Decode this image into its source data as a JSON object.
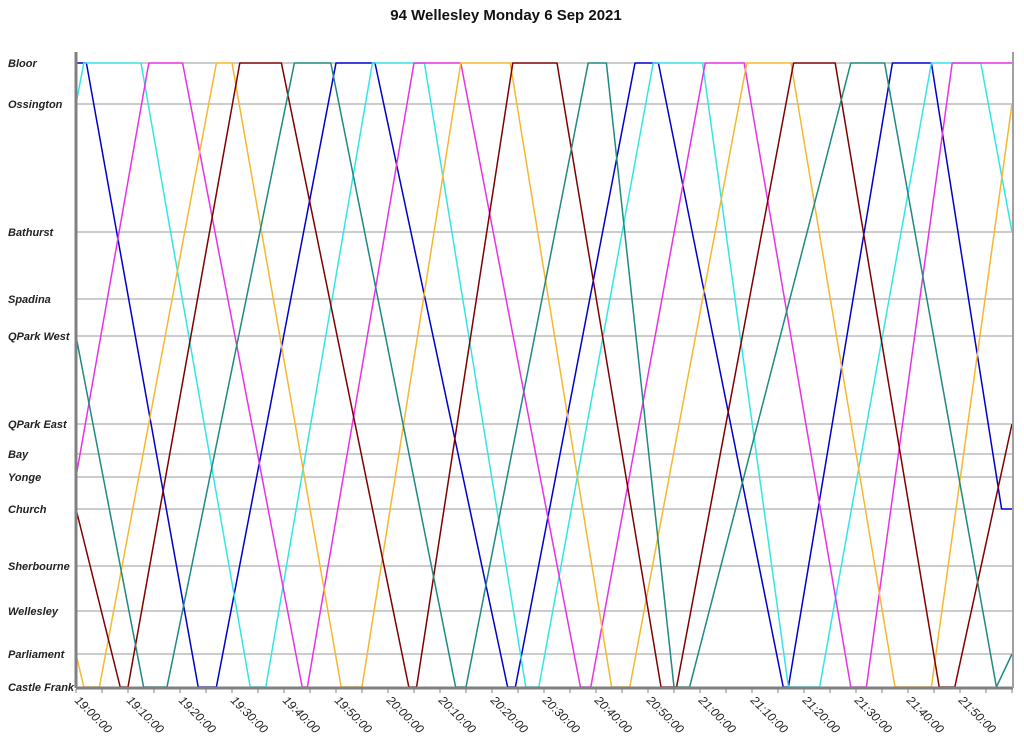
{
  "chart_data": {
    "type": "line",
    "title": "94 Wellesley Monday 6 Sep 2021",
    "xlabel": "",
    "ylabel": "",
    "xlim": [
      "19:00:00",
      "22:00:00"
    ],
    "x_tick_labels": [
      "19:00:00",
      "19:10:00",
      "19:20:00",
      "19:30:00",
      "19:40:00",
      "19:50:00",
      "20:00:00",
      "20:10:00",
      "20:20:00",
      "20:30:00",
      "20:40:00",
      "20:50:00",
      "21:00:00",
      "21:10:00",
      "21:20:00",
      "21:30:00",
      "21:40:00",
      "21:50:00"
    ],
    "stations": [
      "Bloor",
      "Ossington",
      "Bathurst",
      "Spadina",
      "QPark West",
      "QPark East",
      "Bay",
      "Yonge",
      "Church",
      "Sherbourne",
      "Wellesley",
      "Parliament",
      "Castle Frank"
    ],
    "grid": "horizontal at stations",
    "legend": "none",
    "series": [
      {
        "color": "#0000cc",
        "points": [
          [
            "19:00",
            "Bloor"
          ],
          [
            "19:02",
            "Bloor"
          ],
          [
            "19:23.5",
            "Castle Frank"
          ],
          [
            "19:27",
            "Castle Frank"
          ],
          [
            "19:50",
            "Bloor"
          ],
          [
            "19:57.5",
            "Bloor"
          ],
          [
            "20:23",
            "Castle Frank"
          ],
          [
            "20:24.5",
            "Castle Frank"
          ],
          [
            "20:47.5",
            "Bloor"
          ],
          [
            "20:52",
            "Bloor"
          ],
          [
            "21:16",
            "Castle Frank"
          ],
          [
            "21:17",
            "Castle Frank"
          ],
          [
            "21:37",
            "Bloor"
          ],
          [
            "21:44.5",
            "Bloor"
          ],
          [
            "21:58",
            "Church"
          ],
          [
            "22:00",
            "Church"
          ]
        ]
      },
      {
        "color": "#33e6e6",
        "points": [
          [
            "19:00",
            "Ossington"
          ],
          [
            "19:01.5",
            "Bloor"
          ],
          [
            "19:12.5",
            "Bloor"
          ],
          [
            "19:33.5",
            "Castle Frank"
          ],
          [
            "19:36.5",
            "Castle Frank"
          ],
          [
            "19:57",
            "Bloor"
          ],
          [
            "20:07",
            "Bloor"
          ],
          [
            "20:26.5",
            "Castle Frank"
          ],
          [
            "20:29",
            "Castle Frank"
          ],
          [
            "20:51",
            "Bloor"
          ],
          [
            "21:00.5",
            "Bloor"
          ],
          [
            "21:17",
            "Castle Frank"
          ],
          [
            "21:23",
            "Castle Frank"
          ],
          [
            "21:44.5",
            "Bloor"
          ],
          [
            "21:54",
            "Bloor"
          ],
          [
            "22:00",
            "Bathurst"
          ]
        ]
      },
      {
        "color": "#e633e6",
        "points": [
          [
            "19:00",
            "Yonge"
          ],
          [
            "19:14",
            "Bloor"
          ],
          [
            "19:20.5",
            "Bloor"
          ],
          [
            "19:43.5",
            "Castle Frank"
          ],
          [
            "19:44.5",
            "Castle Frank"
          ],
          [
            "20:05",
            "Bloor"
          ],
          [
            "20:14",
            "Bloor"
          ],
          [
            "20:37",
            "Castle Frank"
          ],
          [
            "20:39",
            "Castle Frank"
          ],
          [
            "21:01",
            "Bloor"
          ],
          [
            "21:08.5",
            "Bloor"
          ],
          [
            "21:29",
            "Castle Frank"
          ],
          [
            "21:32",
            "Castle Frank"
          ],
          [
            "21:48.5",
            "Bloor"
          ],
          [
            "22:00",
            "Bloor"
          ]
        ]
      },
      {
        "color": "#f5b82e",
        "points": [
          [
            "19:00",
            "Parliament"
          ],
          [
            "19:01.5",
            "Castle Frank"
          ],
          [
            "19:04.5",
            "Castle Frank"
          ],
          [
            "19:27",
            "Bloor"
          ],
          [
            "19:30",
            "Bloor"
          ],
          [
            "19:51",
            "Castle Frank"
          ],
          [
            "19:55",
            "Castle Frank"
          ],
          [
            "20:14",
            "Bloor"
          ],
          [
            "20:23.5",
            "Bloor"
          ],
          [
            "20:43",
            "Castle Frank"
          ],
          [
            "20:46.5",
            "Castle Frank"
          ],
          [
            "21:09",
            "Bloor"
          ],
          [
            "21:17.5",
            "Bloor"
          ],
          [
            "21:37.5",
            "Castle Frank"
          ],
          [
            "21:44.5",
            "Castle Frank"
          ],
          [
            "22:00",
            "Ossington"
          ]
        ]
      },
      {
        "color": "#800000",
        "points": [
          [
            "19:00",
            "Church"
          ],
          [
            "19:08.5",
            "Castle Frank"
          ],
          [
            "19:10",
            "Castle Frank"
          ],
          [
            "19:31.5",
            "Bloor"
          ],
          [
            "19:39.5",
            "Bloor"
          ],
          [
            "20:04",
            "Castle Frank"
          ],
          [
            "20:05.5",
            "Castle Frank"
          ],
          [
            "20:24",
            "Bloor"
          ],
          [
            "20:32.5",
            "Bloor"
          ],
          [
            "20:52.5",
            "Castle Frank"
          ],
          [
            "20:55.5",
            "Castle Frank"
          ],
          [
            "21:18",
            "Bloor"
          ],
          [
            "21:26",
            "Bloor"
          ],
          [
            "21:46",
            "Castle Frank"
          ],
          [
            "21:49",
            "Castle Frank"
          ],
          [
            "22:00",
            "QPark East"
          ]
        ]
      },
      {
        "color": "#1f8a80",
        "points": [
          [
            "19:00",
            "QPark West"
          ],
          [
            "19:13",
            "Castle Frank"
          ],
          [
            "19:17.5",
            "Castle Frank"
          ],
          [
            "19:42",
            "Bloor"
          ],
          [
            "19:49",
            "Bloor"
          ],
          [
            "20:13",
            "Castle Frank"
          ],
          [
            "20:15",
            "Castle Frank"
          ],
          [
            "20:38.5",
            "Bloor"
          ],
          [
            "20:42",
            "Bloor"
          ],
          [
            "20:55",
            "Castle Frank"
          ],
          [
            "20:58",
            "Castle Frank"
          ],
          [
            "21:29",
            "Bloor"
          ],
          [
            "21:35.5",
            "Bloor"
          ],
          [
            "21:57",
            "Castle Frank"
          ],
          [
            "22:00",
            "Parliament"
          ]
        ]
      }
    ]
  }
}
